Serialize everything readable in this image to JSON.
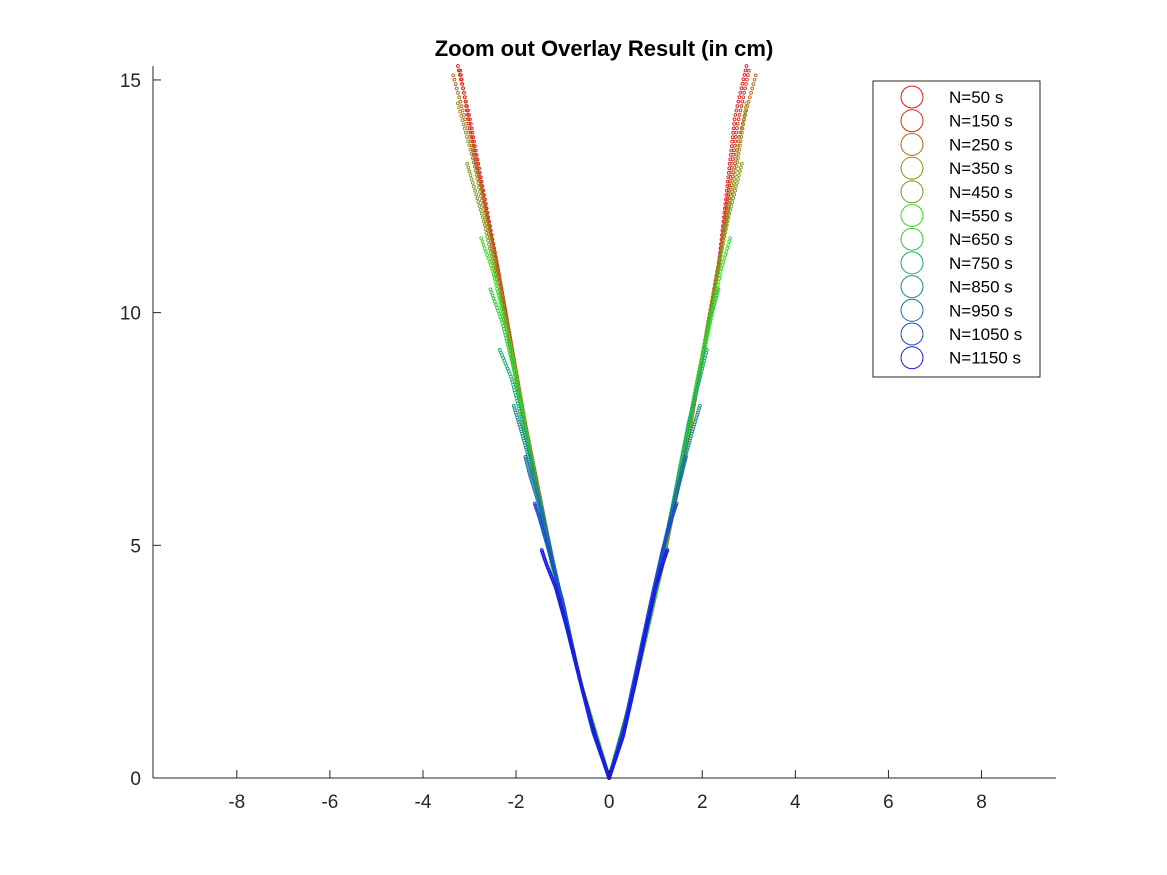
{
  "chart_data": {
    "type": "scatter",
    "title": "Zoom out Overlay Result (in cm)",
    "xlabel": "",
    "ylabel": "",
    "xlim": [
      -9.8,
      9.6
    ],
    "ylim": [
      0,
      15.3
    ],
    "xticks": [
      -8,
      -6,
      -4,
      -2,
      0,
      2,
      4,
      6,
      8
    ],
    "yticks": [
      0,
      5,
      10,
      15
    ],
    "grid": false,
    "legend_position": "top-right",
    "marker": "circle",
    "series": [
      {
        "name": "N=50 s",
        "color": "#e31a1c",
        "left_x": [
          0,
          -0.6,
          -1.2,
          -1.8,
          -2.4,
          -3.0,
          -3.25
        ],
        "right_x": [
          0,
          0.55,
          1.15,
          1.75,
          2.35,
          2.7,
          2.95
        ],
        "y": [
          0,
          2.0,
          4.6,
          7.6,
          11.0,
          14.2,
          15.3
        ]
      },
      {
        "name": "N=150 s",
        "color": "#d2321a",
        "left_x": [
          0,
          -0.6,
          -1.2,
          -1.8,
          -2.4,
          -3.0,
          -3.2
        ],
        "right_x": [
          0,
          0.55,
          1.15,
          1.75,
          2.35,
          2.75,
          3.0
        ],
        "y": [
          0,
          2.0,
          4.6,
          7.6,
          11.0,
          14.0,
          15.2
        ]
      },
      {
        "name": "N=250 s",
        "color": "#b8651a",
        "left_x": [
          0,
          -0.6,
          -1.2,
          -1.8,
          -2.4,
          -3.0,
          -3.35
        ],
        "right_x": [
          0,
          0.55,
          1.15,
          1.75,
          2.35,
          2.8,
          3.15
        ],
        "y": [
          0,
          2.0,
          4.6,
          7.6,
          11.0,
          13.8,
          15.1
        ]
      },
      {
        "name": "N=350 s",
        "color": "#9c8a1a",
        "left_x": [
          0,
          -0.6,
          -1.2,
          -1.8,
          -2.4,
          -2.9,
          -3.25
        ],
        "right_x": [
          0,
          0.55,
          1.15,
          1.75,
          2.3,
          2.75,
          2.95
        ],
        "y": [
          0,
          2.0,
          4.6,
          7.6,
          10.8,
          13.2,
          14.5
        ]
      },
      {
        "name": "N=450 s",
        "color": "#7a9a1a",
        "left_x": [
          0,
          -0.6,
          -1.2,
          -1.8,
          -2.3,
          -2.7,
          -3.05
        ],
        "right_x": [
          0,
          0.55,
          1.15,
          1.7,
          2.2,
          2.55,
          2.85
        ],
        "y": [
          0,
          2.0,
          4.6,
          7.4,
          10.2,
          12.0,
          13.2
        ]
      },
      {
        "name": "N=550 s",
        "color": "#3adc1a",
        "left_x": [
          0,
          -0.6,
          -1.2,
          -1.7,
          -2.1,
          -2.5,
          -2.75
        ],
        "right_x": [
          0,
          0.55,
          1.1,
          1.6,
          2.05,
          2.4,
          2.6
        ],
        "y": [
          0,
          2.0,
          4.4,
          7.0,
          9.2,
          10.9,
          11.6
        ]
      },
      {
        "name": "N=650 s",
        "color": "#2ec83a",
        "left_x": [
          0,
          -0.55,
          -1.1,
          -1.6,
          -2.0,
          -2.3,
          -2.55
        ],
        "right_x": [
          0,
          0.5,
          1.0,
          1.5,
          1.9,
          2.15,
          2.35
        ],
        "y": [
          0,
          1.8,
          4.0,
          6.5,
          8.6,
          9.8,
          10.5
        ]
      },
      {
        "name": "N=750 s",
        "color": "#1aaa6e",
        "left_x": [
          0,
          -0.5,
          -1.0,
          -1.45,
          -1.85,
          -2.1,
          -2.35
        ],
        "right_x": [
          0,
          0.45,
          0.9,
          1.35,
          1.7,
          1.95,
          2.1
        ],
        "y": [
          0,
          1.6,
          3.6,
          5.8,
          7.6,
          8.6,
          9.2
        ]
      },
      {
        "name": "N=850 s",
        "color": "#1a8a8a",
        "left_x": [
          0,
          -0.45,
          -0.9,
          -1.3,
          -1.65,
          -1.9,
          -2.05
        ],
        "right_x": [
          0,
          0.4,
          0.8,
          1.2,
          1.55,
          1.8,
          1.95
        ],
        "y": [
          0,
          1.4,
          3.2,
          5.1,
          6.6,
          7.5,
          8.0
        ]
      },
      {
        "name": "N=950 s",
        "color": "#1a6ea8",
        "left_x": [
          0,
          -0.4,
          -0.8,
          -1.15,
          -1.45,
          -1.7,
          -1.8
        ],
        "right_x": [
          0,
          0.35,
          0.7,
          1.05,
          1.35,
          1.55,
          1.65
        ],
        "y": [
          0,
          1.2,
          2.8,
          4.4,
          5.7,
          6.5,
          6.9
        ]
      },
      {
        "name": "N=1050 s",
        "color": "#1a50c8",
        "left_x": [
          0,
          -0.35,
          -0.7,
          -1.0,
          -1.3,
          -1.5,
          -1.6
        ],
        "right_x": [
          0,
          0.3,
          0.6,
          0.9,
          1.15,
          1.35,
          1.45
        ],
        "y": [
          0,
          1.0,
          2.4,
          3.8,
          4.9,
          5.6,
          5.9
        ]
      },
      {
        "name": "N=1150 s",
        "color": "#1a1ae6",
        "left_x": [
          0,
          -0.3,
          -0.6,
          -0.9,
          -1.15,
          -1.35,
          -1.45
        ],
        "right_x": [
          0,
          0.3,
          0.55,
          0.8,
          1.0,
          1.15,
          1.25
        ],
        "y": [
          0,
          0.9,
          2.0,
          3.2,
          4.1,
          4.6,
          4.9
        ]
      }
    ]
  }
}
